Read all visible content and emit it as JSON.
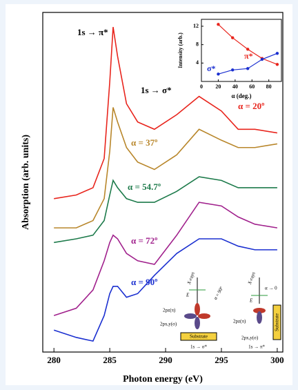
{
  "chart_data": [
    {
      "type": "line",
      "xlabel": "Photon energy (eV)",
      "ylabel": "Absorption (arb. units)",
      "annotations": [
        "1s → π*",
        "1s → σ*"
      ],
      "x": [
        280,
        282,
        283.5,
        284.5,
        285,
        285.3,
        285.7,
        286.5,
        287.5,
        289,
        291,
        293,
        295,
        296.5,
        298,
        300
      ],
      "xlim": [
        279,
        300.5
      ],
      "xticks": [
        280,
        285,
        290,
        295,
        300
      ],
      "ylim": [
        7,
        100
      ],
      "series": [
        {
          "name": "α = 20º",
          "color": "#e8241c",
          "values": [
            49,
            50,
            52,
            60,
            81,
            96,
            88,
            75,
            70,
            68,
            72,
            77,
            73,
            68,
            68,
            67
          ]
        },
        {
          "name": "α = 37º",
          "color": "#b8862a",
          "values": [
            41,
            41,
            43,
            49,
            62,
            74,
            70,
            63,
            59,
            57,
            61,
            68,
            65,
            63,
            63,
            64
          ]
        },
        {
          "name": "α = 54.7º",
          "color": "#1c7a4a",
          "values": [
            37,
            38,
            39,
            43,
            50,
            54,
            52,
            49,
            48,
            48,
            51,
            55,
            54,
            52,
            52,
            52
          ]
        },
        {
          "name": "α = 72º",
          "color": "#a0208c",
          "values": [
            17,
            19,
            24,
            32,
            37,
            39,
            38,
            34,
            32,
            31,
            39,
            48,
            47,
            44,
            42,
            41
          ]
        },
        {
          "name": "α = 90º",
          "color": "#1a2fd0",
          "values": [
            13,
            11,
            10,
            17,
            23,
            25,
            25,
            22,
            23,
            28,
            34,
            38,
            38,
            36,
            35,
            35
          ]
        }
      ]
    },
    {
      "type": "scatter",
      "xlabel": "α (deg.)",
      "ylabel": "Intensity (arb.)",
      "xlim": [
        0,
        95
      ],
      "xticks": [
        0,
        20,
        40,
        60,
        80
      ],
      "ylim": [
        0,
        13.5
      ],
      "yticks": [
        4,
        8,
        12
      ],
      "series": [
        {
          "name": "π*",
          "color": "#e8241c",
          "x": [
            20,
            37,
            55,
            72,
            90
          ],
          "values": [
            12.4,
            9.5,
            7,
            5,
            3.7
          ]
        },
        {
          "name": "σ*",
          "color": "#1a2fd0",
          "x": [
            20,
            37,
            55,
            72,
            90
          ],
          "values": [
            1.6,
            2.5,
            2.8,
            4.8,
            6.1
          ]
        }
      ]
    }
  ],
  "schematic": {
    "left": {
      "xrays": "X-rays",
      "e": "E",
      "angle": "α = 90º",
      "pz": "2pz(π)",
      "pxy": "2px,y(σ)",
      "substrate": "Substrate",
      "transition": "1s → σ*"
    },
    "right": {
      "xrays": "X-rays",
      "e": "E",
      "angle": "α → 0",
      "pz": "2pz(π)",
      "pxy": "2px,y(σ)",
      "substrate": "Substrate",
      "transition": "1s → π*"
    }
  }
}
